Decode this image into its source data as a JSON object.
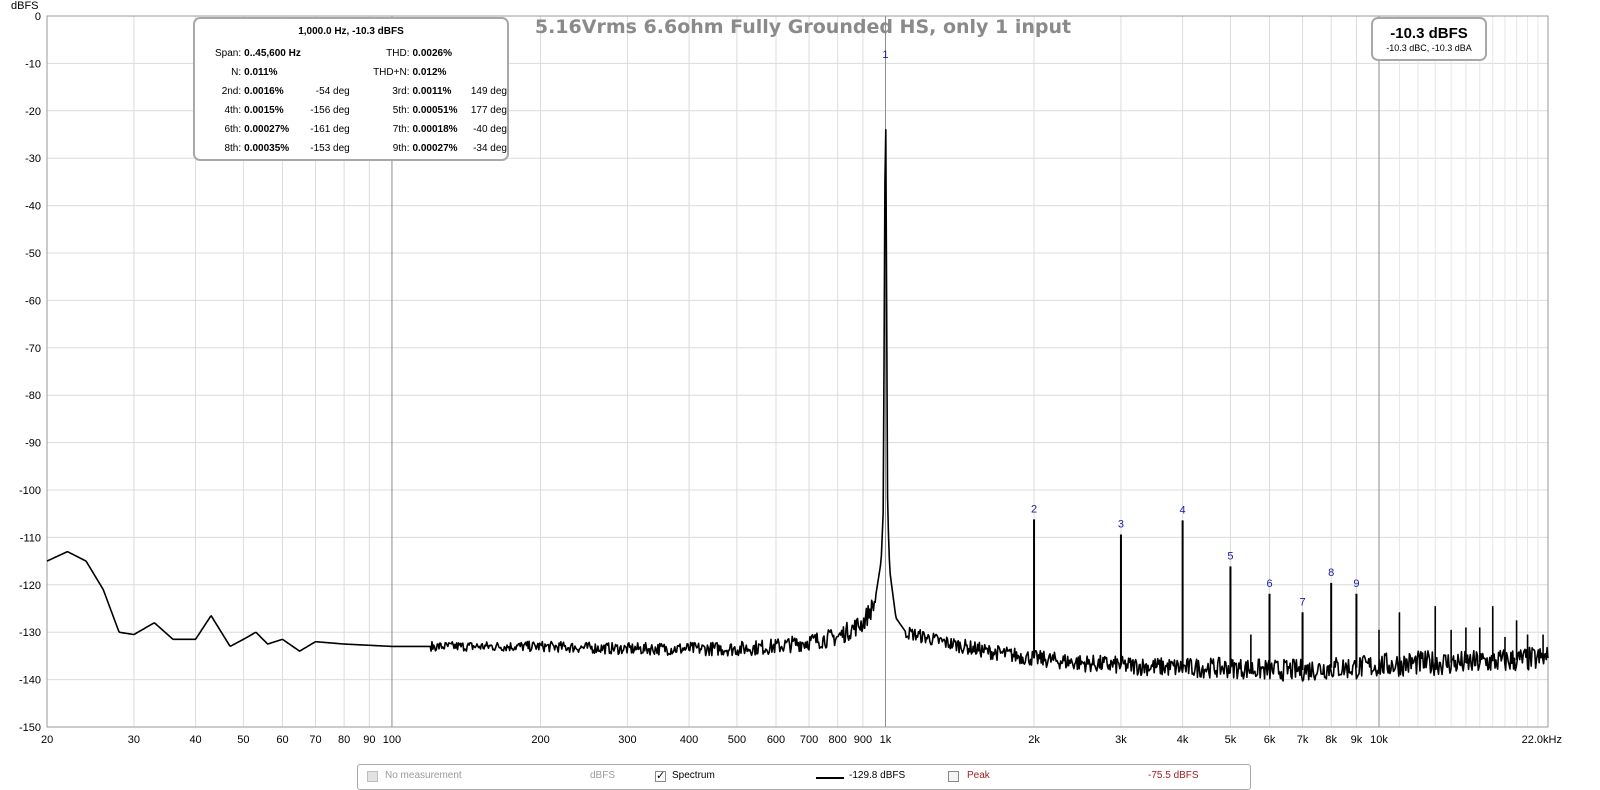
{
  "chart_data": {
    "type": "line",
    "title": "5.16Vrms 6.6ohm Fully Grounded HS, only 1 input",
    "ylabel": "dBFS",
    "xlabel": "",
    "x_scale": "log",
    "xlim": [
      20,
      22000
    ],
    "ylim": [
      -150,
      0
    ],
    "y_ticks": [
      0,
      -10,
      -20,
      -30,
      -40,
      -50,
      -60,
      -70,
      -80,
      -90,
      -100,
      -110,
      -120,
      -130,
      -140,
      -150
    ],
    "y_tick_labels": [
      "0",
      "-10",
      "-20",
      "-30",
      "-40",
      "-50",
      "-60",
      "-70",
      "-80",
      "-90",
      "-100",
      "-110",
      "-120",
      "-130",
      "-140",
      "-150"
    ],
    "x_ticks": [
      {
        "value": 20,
        "label": "20"
      },
      {
        "value": 30,
        "label": "30"
      },
      {
        "value": 40,
        "label": "40"
      },
      {
        "value": 50,
        "label": "50"
      },
      {
        "value": 60,
        "label": "60"
      },
      {
        "value": 70,
        "label": "70"
      },
      {
        "value": 80,
        "label": "80"
      },
      {
        "value": 90,
        "label": "90"
      },
      {
        "value": 100,
        "label": "100"
      },
      {
        "value": 200,
        "label": "200"
      },
      {
        "value": 300,
        "label": "300"
      },
      {
        "value": 400,
        "label": "400"
      },
      {
        "value": 500,
        "label": "500"
      },
      {
        "value": 600,
        "label": "600"
      },
      {
        "value": 700,
        "label": "700"
      },
      {
        "value": 800,
        "label": "800"
      },
      {
        "value": 900,
        "label": "900"
      },
      {
        "value": 1000,
        "label": "1k"
      },
      {
        "value": 2000,
        "label": "2k"
      },
      {
        "value": 3000,
        "label": "3k"
      },
      {
        "value": 4000,
        "label": "4k"
      },
      {
        "value": 5000,
        "label": "5k"
      },
      {
        "value": 6000,
        "label": "6k"
      },
      {
        "value": 7000,
        "label": "7k"
      },
      {
        "value": 8000,
        "label": "8k"
      },
      {
        "value": 9000,
        "label": "9k"
      },
      {
        "value": 10000,
        "label": "10k"
      },
      {
        "value": 22000,
        "label": "22.0kHz"
      }
    ],
    "grid": true,
    "series": [
      {
        "name": "Spectrum",
        "color": "#000000",
        "points": [
          [
            20,
            -115
          ],
          [
            22,
            -113
          ],
          [
            24,
            -115
          ],
          [
            26,
            -121
          ],
          [
            28,
            -130
          ],
          [
            30,
            -130.5
          ],
          [
            33,
            -128
          ],
          [
            36,
            -131.5
          ],
          [
            40,
            -131.5
          ],
          [
            43,
            -126.5
          ],
          [
            47,
            -133
          ],
          [
            50,
            -131.5
          ],
          [
            53,
            -130
          ],
          [
            56,
            -132.5
          ],
          [
            60,
            -131.5
          ],
          [
            65,
            -134
          ],
          [
            70,
            -132
          ],
          [
            80,
            -132.5
          ],
          [
            100,
            -133
          ],
          [
            150,
            -133
          ],
          [
            200,
            -133
          ],
          [
            300,
            -133.5
          ],
          [
            400,
            -133.5
          ],
          [
            500,
            -133.5
          ],
          [
            600,
            -133
          ],
          [
            700,
            -132
          ],
          [
            800,
            -131
          ],
          [
            900,
            -128
          ],
          [
            950,
            -124
          ],
          [
            980,
            -115
          ],
          [
            990,
            -104
          ],
          [
            1000,
            -10.3
          ],
          [
            1010,
            -104
          ],
          [
            1020,
            -117
          ],
          [
            1050,
            -127
          ],
          [
            1100,
            -130
          ],
          [
            1300,
            -132
          ],
          [
            1600,
            -134
          ],
          [
            2000,
            -135.5
          ],
          [
            2500,
            -136.5
          ],
          [
            3000,
            -137
          ],
          [
            4000,
            -137.5
          ],
          [
            5000,
            -137.5
          ],
          [
            6000,
            -138
          ],
          [
            7000,
            -138
          ],
          [
            8000,
            -137.5
          ],
          [
            9000,
            -137.5
          ],
          [
            10000,
            -137
          ],
          [
            12000,
            -136.5
          ],
          [
            15000,
            -136.5
          ],
          [
            18000,
            -136
          ],
          [
            22000,
            -135.5
          ]
        ],
        "harmonics": [
          {
            "label": "1",
            "freq": 1000,
            "level": -10.3
          },
          {
            "label": "2",
            "freq": 2000,
            "level": -106.2
          },
          {
            "label": "3",
            "freq": 3000,
            "level": -109.4
          },
          {
            "label": "4",
            "freq": 4000,
            "level": -106.4
          },
          {
            "label": "5",
            "freq": 5000,
            "level": -116.1
          },
          {
            "label": "6",
            "freq": 6000,
            "level": -121.9
          },
          {
            "label": "7",
            "freq": 7000,
            "level": -125.8
          },
          {
            "label": "8",
            "freq": 8000,
            "level": -119.6
          },
          {
            "label": "9",
            "freq": 9000,
            "level": -121.9
          }
        ],
        "spurs": [
          {
            "freq": 5500,
            "level": -130.5
          },
          {
            "freq": 10000,
            "level": -129.5
          },
          {
            "freq": 11000,
            "level": -125.8
          },
          {
            "freq": 13000,
            "level": -124.5
          },
          {
            "freq": 14000,
            "level": -129.5
          },
          {
            "freq": 15000,
            "level": -129
          },
          {
            "freq": 16000,
            "level": -129
          },
          {
            "freq": 17000,
            "level": -124.5
          },
          {
            "freq": 18000,
            "level": -131
          },
          {
            "freq": 19000,
            "level": -127.5
          },
          {
            "freq": 20000,
            "level": -130.5
          },
          {
            "freq": 21500,
            "level": -130.5
          }
        ]
      }
    ]
  },
  "distortion_box": {
    "header": "1,000.0 Hz, -10.3 dBFS",
    "span_label": "Span:",
    "span_value": "0..45,600 Hz",
    "thd_label": "THD:",
    "thd_value": "0.0026%",
    "n_label": "N:",
    "n_value": "0.011%",
    "thdn_label": "THD+N:",
    "thdn_value": "0.012%",
    "rows": [
      {
        "l1": "2nd:",
        "v1": "0.0016%",
        "p1": "-54 deg",
        "l2": "3rd:",
        "v2": "0.0011%",
        "p2": "149 deg"
      },
      {
        "l1": "4th:",
        "v1": "0.0015%",
        "p1": "-156 deg",
        "l2": "5th:",
        "v2": "0.00051%",
        "p2": "177 deg"
      },
      {
        "l1": "6th:",
        "v1": "0.00027%",
        "p1": "-161 deg",
        "l2": "7th:",
        "v2": "0.00018%",
        "p2": "-40 deg"
      },
      {
        "l1": "8th:",
        "v1": "0.00035%",
        "p1": "-153 deg",
        "l2": "9th:",
        "v2": "0.00027%",
        "p2": "-34 deg"
      }
    ]
  },
  "level_box": {
    "main": "-10.3 dBFS",
    "sub": "-10.3 dBC, -10.3 dBA"
  },
  "legend": {
    "no_measurement": "No measurement",
    "no_measurement_unit": "dBFS",
    "spectrum_label": "Spectrum",
    "spectrum_value": "-129.8 dBFS",
    "peak_label": "Peak",
    "peak_value": "-75.5 dBFS",
    "spectrum_checked": true,
    "peak_checked": false
  }
}
